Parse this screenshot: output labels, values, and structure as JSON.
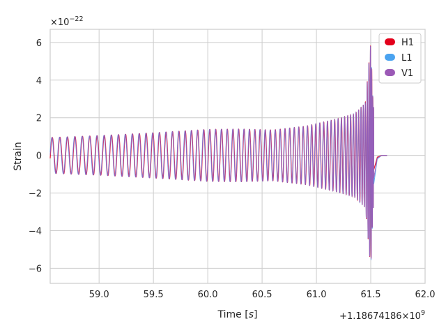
{
  "chart_data": {
    "type": "line",
    "xlabel": "Time [",
    "xlabel_unit": "s",
    "xlabel_close": "]",
    "ylabel": "Strain",
    "y_exponent_base": "×10",
    "y_exponent_power": "−22",
    "x_offset_base": "+1.18674186×10",
    "x_offset_power": "9",
    "xlim": [
      58.55,
      62.0
    ],
    "ylim": [
      -6.8,
      6.7
    ],
    "x_ticks": [
      "59.0",
      "59.5",
      "60.0",
      "60.5",
      "61.0",
      "61.5",
      "62.0"
    ],
    "x_tick_values": [
      59.0,
      59.5,
      60.0,
      60.5,
      61.0,
      61.5,
      62.0
    ],
    "y_ticks": [
      "−6",
      "−4",
      "−2",
      "0",
      "2",
      "4",
      "6"
    ],
    "y_tick_values": [
      -6,
      -4,
      -2,
      0,
      2,
      4,
      6
    ],
    "grid": true,
    "legend_position": "top-right",
    "merger_time": 61.51,
    "series": [
      {
        "name": "H1",
        "color": "#e3001b"
      },
      {
        "name": "L1",
        "color": "#4aa3f0"
      },
      {
        "name": "V1",
        "color": "#9b59b6"
      }
    ],
    "envelope_points": [
      {
        "x": 58.55,
        "amp": 0.95
      },
      {
        "x": 59.0,
        "amp": 1.05
      },
      {
        "x": 59.5,
        "amp": 1.2
      },
      {
        "x": 60.0,
        "amp": 1.38
      },
      {
        "x": 60.3,
        "amp": 1.4
      },
      {
        "x": 60.6,
        "amp": 1.35
      },
      {
        "x": 60.9,
        "amp": 1.55
      },
      {
        "x": 61.2,
        "amp": 1.95
      },
      {
        "x": 61.35,
        "amp": 2.2
      },
      {
        "x": 61.45,
        "amp": 2.8
      },
      {
        "x": 61.5,
        "amp": 6.0
      },
      {
        "x": 61.52,
        "amp": 3.0
      },
      {
        "x": 61.56,
        "amp": 0.3
      },
      {
        "x": 61.6,
        "amp": 0.0
      }
    ]
  }
}
